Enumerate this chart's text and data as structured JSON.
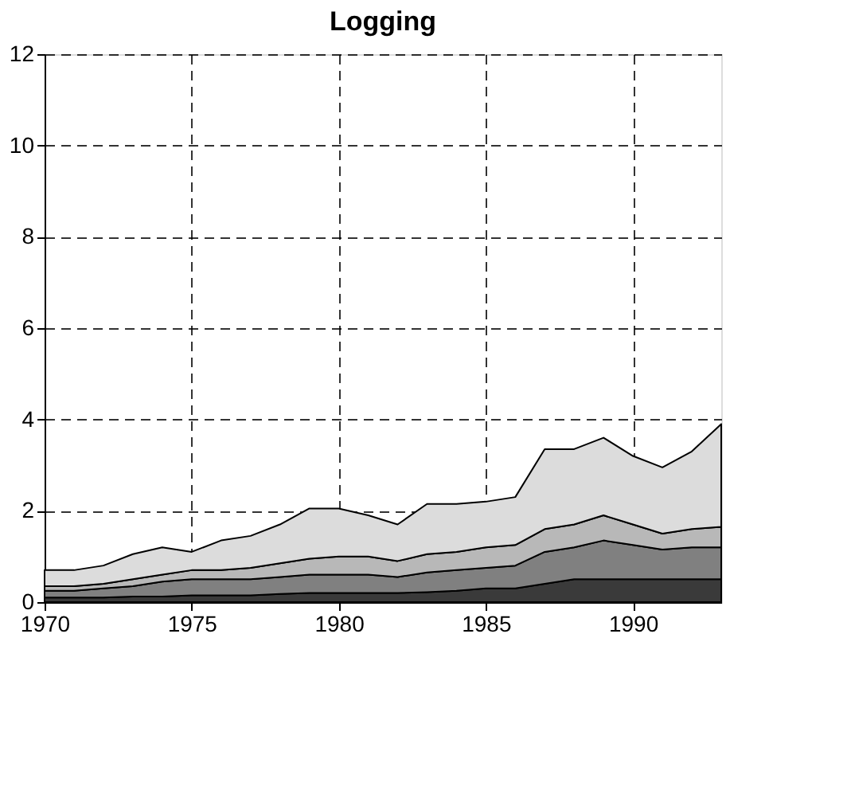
{
  "chart_data": {
    "type": "area",
    "title": "Logging",
    "stacked": true,
    "x": [
      1970,
      1971,
      1972,
      1973,
      1974,
      1975,
      1976,
      1977,
      1978,
      1979,
      1980,
      1981,
      1982,
      1983,
      1984,
      1985,
      1986,
      1987,
      1988,
      1989,
      1990,
      1991,
      1992,
      1993
    ],
    "series": [
      {
        "color": "#3a3a3a",
        "values": [
          0.1,
          0.1,
          0.1,
          0.12,
          0.12,
          0.15,
          0.15,
          0.15,
          0.18,
          0.2,
          0.2,
          0.2,
          0.2,
          0.22,
          0.25,
          0.3,
          0.3,
          0.4,
          0.5,
          0.5,
          0.5,
          0.5,
          0.5,
          0.5
        ]
      },
      {
        "color": "#808080",
        "values": [
          0.15,
          0.15,
          0.2,
          0.23,
          0.33,
          0.35,
          0.35,
          0.35,
          0.37,
          0.4,
          0.4,
          0.4,
          0.35,
          0.43,
          0.45,
          0.45,
          0.5,
          0.7,
          0.7,
          0.85,
          0.75,
          0.65,
          0.7,
          0.7
        ]
      },
      {
        "color": "#b8b8b8",
        "values": [
          0.1,
          0.1,
          0.1,
          0.15,
          0.15,
          0.2,
          0.2,
          0.25,
          0.3,
          0.35,
          0.4,
          0.4,
          0.35,
          0.4,
          0.4,
          0.45,
          0.45,
          0.5,
          0.5,
          0.55,
          0.45,
          0.35,
          0.4,
          0.45
        ]
      },
      {
        "color": "#dcdcdc",
        "values": [
          0.35,
          0.35,
          0.4,
          0.55,
          0.6,
          0.4,
          0.65,
          0.7,
          0.85,
          1.1,
          1.05,
          0.9,
          0.8,
          1.1,
          1.05,
          1.0,
          1.05,
          1.75,
          1.65,
          1.7,
          1.5,
          1.45,
          1.7,
          2.25
        ]
      }
    ],
    "xlim": [
      1970,
      1993
    ],
    "xticks": [
      1970,
      1975,
      1980,
      1985,
      1990
    ],
    "ylim": [
      0,
      12
    ],
    "yticks": [
      0,
      2,
      4,
      6,
      8,
      10,
      12
    ],
    "grid": true,
    "legend": false
  }
}
